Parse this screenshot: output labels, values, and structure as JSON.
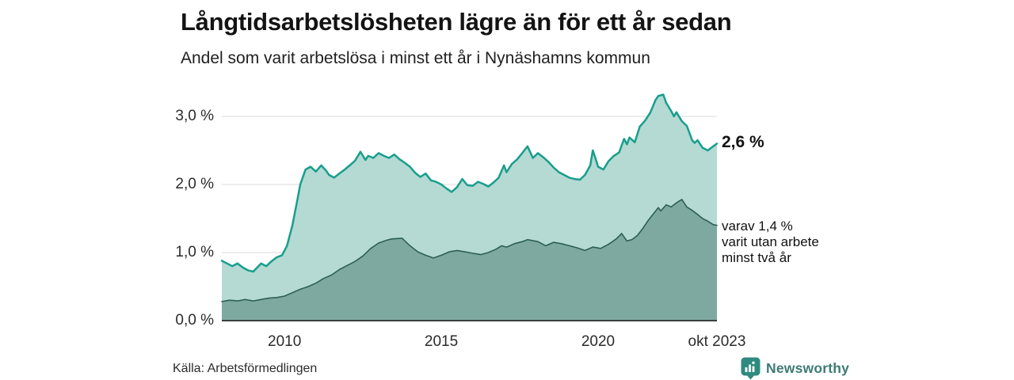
{
  "brand": {
    "name": "Newsworthy",
    "icon": "bar-chart-pin-icon",
    "text_color": "#3d7b74",
    "icon_color": "#2e8a7e"
  },
  "colors": {
    "background": "#ffffff",
    "grid": "#e2e2e2",
    "axis": "#3a3f3e",
    "title_text": "#131313"
  },
  "chart_data": {
    "type": "area",
    "title": "Långtidsarbetslösheten lägre än för ett år sedan",
    "subtitle": "Andel som varit arbetslösa i minst ett år i Nynäshamns kommun",
    "source": "Källa: Arbetsförmedlingen",
    "x_range": [
      2008.0,
      2023.79
    ],
    "ylim": [
      0,
      3.5
    ],
    "grid": true,
    "legend_position": "none — direct labels at right end of series",
    "y_ticks": [
      {
        "v": 0,
        "label": "0,0 %"
      },
      {
        "v": 1,
        "label": "1,0 %"
      },
      {
        "v": 2,
        "label": "2,0 %"
      },
      {
        "v": 3,
        "label": "3,0 %"
      }
    ],
    "x_ticks": [
      {
        "t": 2010,
        "label": "2010"
      },
      {
        "t": 2015,
        "label": "2015"
      },
      {
        "t": 2020,
        "label": "2020"
      },
      {
        "t": 2023.79,
        "label": "okt 2023"
      }
    ],
    "annotations": {
      "total_end_label": "2,6 %",
      "two_year_end_label_lines": [
        "varav 1,4 %",
        "varit utan arbete",
        "minst två år"
      ]
    },
    "series": [
      {
        "name": "Andel arbetslösa minst ett år (totalt)",
        "end_value": 2.6,
        "line_color": "#189e8c",
        "fill_color": "#b4dad3",
        "line_width": 2.5,
        "points": [
          [
            2008.0,
            0.88
          ],
          [
            2008.17,
            0.84
          ],
          [
            2008.33,
            0.8
          ],
          [
            2008.5,
            0.84
          ],
          [
            2008.67,
            0.78
          ],
          [
            2008.83,
            0.74
          ],
          [
            2009.0,
            0.72
          ],
          [
            2009.17,
            0.8
          ],
          [
            2009.25,
            0.84
          ],
          [
            2009.42,
            0.8
          ],
          [
            2009.58,
            0.87
          ],
          [
            2009.75,
            0.93
          ],
          [
            2009.92,
            0.96
          ],
          [
            2010.08,
            1.1
          ],
          [
            2010.25,
            1.4
          ],
          [
            2010.42,
            1.8
          ],
          [
            2010.5,
            2.0
          ],
          [
            2010.67,
            2.22
          ],
          [
            2010.83,
            2.26
          ],
          [
            2011.0,
            2.19
          ],
          [
            2011.17,
            2.28
          ],
          [
            2011.33,
            2.2
          ],
          [
            2011.42,
            2.14
          ],
          [
            2011.58,
            2.1
          ],
          [
            2011.75,
            2.16
          ],
          [
            2011.92,
            2.22
          ],
          [
            2012.08,
            2.28
          ],
          [
            2012.25,
            2.35
          ],
          [
            2012.42,
            2.48
          ],
          [
            2012.58,
            2.36
          ],
          [
            2012.67,
            2.42
          ],
          [
            2012.83,
            2.39
          ],
          [
            2013.0,
            2.46
          ],
          [
            2013.17,
            2.42
          ],
          [
            2013.33,
            2.39
          ],
          [
            2013.5,
            2.44
          ],
          [
            2013.67,
            2.37
          ],
          [
            2013.83,
            2.32
          ],
          [
            2014.0,
            2.26
          ],
          [
            2014.17,
            2.17
          ],
          [
            2014.33,
            2.11
          ],
          [
            2014.5,
            2.16
          ],
          [
            2014.67,
            2.06
          ],
          [
            2014.83,
            2.04
          ],
          [
            2015.0,
            2.0
          ],
          [
            2015.17,
            1.94
          ],
          [
            2015.33,
            1.89
          ],
          [
            2015.5,
            1.96
          ],
          [
            2015.67,
            2.08
          ],
          [
            2015.83,
            1.99
          ],
          [
            2016.0,
            1.98
          ],
          [
            2016.17,
            2.04
          ],
          [
            2016.33,
            2.01
          ],
          [
            2016.5,
            1.97
          ],
          [
            2016.67,
            2.03
          ],
          [
            2016.83,
            2.1
          ],
          [
            2017.0,
            2.28
          ],
          [
            2017.08,
            2.18
          ],
          [
            2017.25,
            2.3
          ],
          [
            2017.42,
            2.37
          ],
          [
            2017.58,
            2.46
          ],
          [
            2017.75,
            2.56
          ],
          [
            2017.92,
            2.39
          ],
          [
            2018.08,
            2.46
          ],
          [
            2018.25,
            2.4
          ],
          [
            2018.42,
            2.33
          ],
          [
            2018.58,
            2.25
          ],
          [
            2018.75,
            2.18
          ],
          [
            2018.92,
            2.14
          ],
          [
            2019.08,
            2.1
          ],
          [
            2019.25,
            2.08
          ],
          [
            2019.42,
            2.07
          ],
          [
            2019.58,
            2.14
          ],
          [
            2019.75,
            2.28
          ],
          [
            2019.83,
            2.5
          ],
          [
            2019.92,
            2.38
          ],
          [
            2020.0,
            2.26
          ],
          [
            2020.17,
            2.22
          ],
          [
            2020.33,
            2.34
          ],
          [
            2020.5,
            2.42
          ],
          [
            2020.67,
            2.47
          ],
          [
            2020.83,
            2.67
          ],
          [
            2020.92,
            2.59
          ],
          [
            2021.0,
            2.69
          ],
          [
            2021.17,
            2.62
          ],
          [
            2021.33,
            2.85
          ],
          [
            2021.5,
            2.94
          ],
          [
            2021.67,
            3.06
          ],
          [
            2021.83,
            3.24
          ],
          [
            2021.92,
            3.3
          ],
          [
            2022.08,
            3.32
          ],
          [
            2022.17,
            3.2
          ],
          [
            2022.33,
            3.08
          ],
          [
            2022.42,
            3.0
          ],
          [
            2022.5,
            3.06
          ],
          [
            2022.67,
            2.93
          ],
          [
            2022.83,
            2.86
          ],
          [
            2023.0,
            2.65
          ],
          [
            2023.08,
            2.61
          ],
          [
            2023.17,
            2.65
          ],
          [
            2023.33,
            2.54
          ],
          [
            2023.5,
            2.5
          ],
          [
            2023.67,
            2.56
          ],
          [
            2023.79,
            2.6
          ]
        ]
      },
      {
        "name": "varav utan arbete minst två år",
        "end_value": 1.4,
        "line_color": "#2d5f57",
        "fill_color": "#7ea9a1",
        "line_width": 1.6,
        "points": [
          [
            2008.0,
            0.28
          ],
          [
            2008.25,
            0.3
          ],
          [
            2008.5,
            0.29
          ],
          [
            2008.75,
            0.31
          ],
          [
            2009.0,
            0.29
          ],
          [
            2009.25,
            0.31
          ],
          [
            2009.5,
            0.33
          ],
          [
            2009.75,
            0.34
          ],
          [
            2010.0,
            0.36
          ],
          [
            2010.25,
            0.41
          ],
          [
            2010.5,
            0.46
          ],
          [
            2010.75,
            0.5
          ],
          [
            2011.0,
            0.55
          ],
          [
            2011.25,
            0.62
          ],
          [
            2011.5,
            0.67
          ],
          [
            2011.75,
            0.75
          ],
          [
            2012.0,
            0.81
          ],
          [
            2012.25,
            0.87
          ],
          [
            2012.5,
            0.95
          ],
          [
            2012.75,
            1.06
          ],
          [
            2013.0,
            1.14
          ],
          [
            2013.25,
            1.18
          ],
          [
            2013.42,
            1.2
          ],
          [
            2013.75,
            1.21
          ],
          [
            2014.0,
            1.1
          ],
          [
            2014.25,
            1.01
          ],
          [
            2014.5,
            0.96
          ],
          [
            2014.75,
            0.92
          ],
          [
            2015.0,
            0.96
          ],
          [
            2015.25,
            1.01
          ],
          [
            2015.5,
            1.03
          ],
          [
            2015.75,
            1.01
          ],
          [
            2016.0,
            0.99
          ],
          [
            2016.25,
            0.97
          ],
          [
            2016.5,
            1.0
          ],
          [
            2016.75,
            1.05
          ],
          [
            2016.92,
            1.1
          ],
          [
            2017.08,
            1.08
          ],
          [
            2017.33,
            1.13
          ],
          [
            2017.58,
            1.16
          ],
          [
            2017.75,
            1.19
          ],
          [
            2018.08,
            1.16
          ],
          [
            2018.33,
            1.1
          ],
          [
            2018.58,
            1.15
          ],
          [
            2018.83,
            1.13
          ],
          [
            2019.08,
            1.1
          ],
          [
            2019.33,
            1.07
          ],
          [
            2019.58,
            1.03
          ],
          [
            2019.83,
            1.08
          ],
          [
            2020.08,
            1.06
          ],
          [
            2020.33,
            1.12
          ],
          [
            2020.58,
            1.2
          ],
          [
            2020.75,
            1.28
          ],
          [
            2020.92,
            1.17
          ],
          [
            2021.08,
            1.19
          ],
          [
            2021.25,
            1.25
          ],
          [
            2021.42,
            1.35
          ],
          [
            2021.58,
            1.46
          ],
          [
            2021.75,
            1.56
          ],
          [
            2021.92,
            1.66
          ],
          [
            2022.0,
            1.61
          ],
          [
            2022.17,
            1.7
          ],
          [
            2022.33,
            1.67
          ],
          [
            2022.5,
            1.73
          ],
          [
            2022.67,
            1.78
          ],
          [
            2022.83,
            1.67
          ],
          [
            2023.0,
            1.62
          ],
          [
            2023.17,
            1.56
          ],
          [
            2023.33,
            1.5
          ],
          [
            2023.5,
            1.46
          ],
          [
            2023.67,
            1.41
          ],
          [
            2023.79,
            1.4
          ]
        ]
      }
    ]
  }
}
